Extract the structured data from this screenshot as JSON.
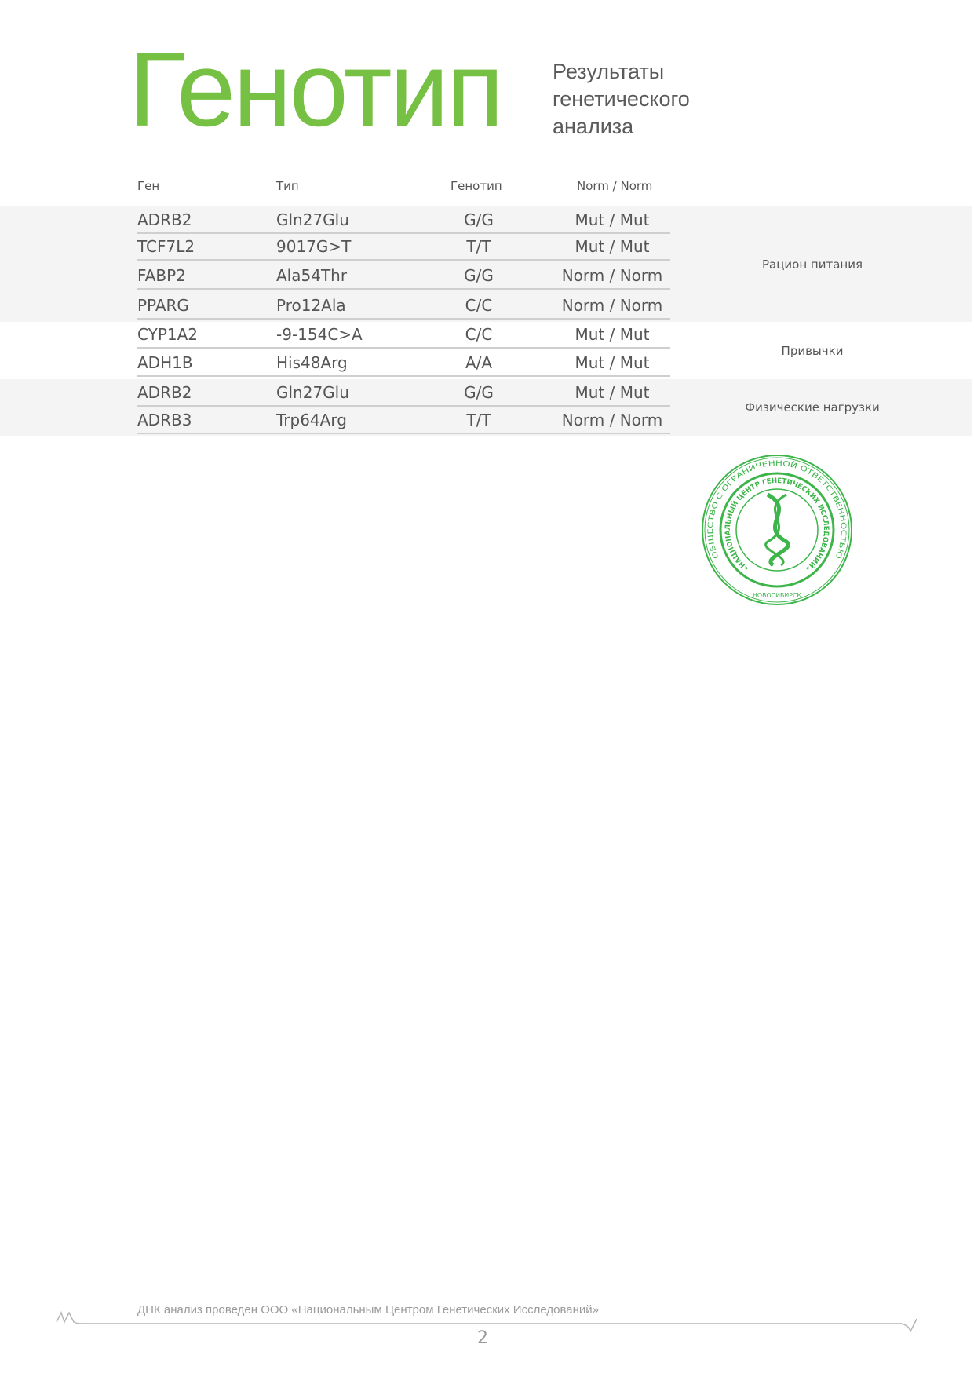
{
  "header": {
    "title": "Генотип",
    "subtitle": [
      "Результаты",
      "генетического",
      "анализа"
    ]
  },
  "table": {
    "columns": [
      "Ген",
      "Тип",
      "Генотип",
      "Norm / Norm"
    ],
    "rows": [
      {
        "gene": "ADRB2",
        "type": "Gln27Glu",
        "genotype": "G/G",
        "result": "Mut / Mut"
      },
      {
        "gene": "TCF7L2",
        "type": "9017G>T",
        "genotype": "T/T",
        "result": "Mut / Mut"
      },
      {
        "gene": "FABP2",
        "type": "Ala54Thr",
        "genotype": "G/G",
        "result": "Norm / Norm"
      },
      {
        "gene": "PPARG",
        "type": "Pro12Ala",
        "genotype": "C/C",
        "result": "Norm / Norm"
      },
      {
        "gene": "CYP1A2",
        "type": "-9-154C>A",
        "genotype": "C/C",
        "result": "Mut / Mut"
      },
      {
        "gene": "ADH1B",
        "type": "His48Arg",
        "genotype": "A/A",
        "result": "Mut / Mut"
      },
      {
        "gene": "ADRB2",
        "type": "Gln27Glu",
        "genotype": "G/G",
        "result": "Mut / Mut"
      },
      {
        "gene": "ADRB3",
        "type": "Trp64Arg",
        "genotype": "T/T",
        "result": "Norm / Norm"
      }
    ],
    "categories": [
      "Рацион питания",
      "Привычки",
      "Физические нагрузки"
    ]
  },
  "stamp": {
    "outer_text": "ОБЩЕСТВО С ОГРАНИЧЕННОЙ ОТВЕТСТВЕННОСТЬЮ",
    "inner_text": "«НАЦИОНАЛЬНЫЙ ЦЕНТР ГЕНЕТИЧЕСКИХ ИССЛЕДОВАНИЙ»",
    "city": "НОВОСИБИРСК",
    "color": "#3db54a"
  },
  "footer": {
    "text": "ДНК анализ проведен ООО «Национальным Центром Генетических Исследований»",
    "page_number": "2"
  },
  "colors": {
    "accent": "#76c043",
    "band": "#f4f4f4"
  }
}
